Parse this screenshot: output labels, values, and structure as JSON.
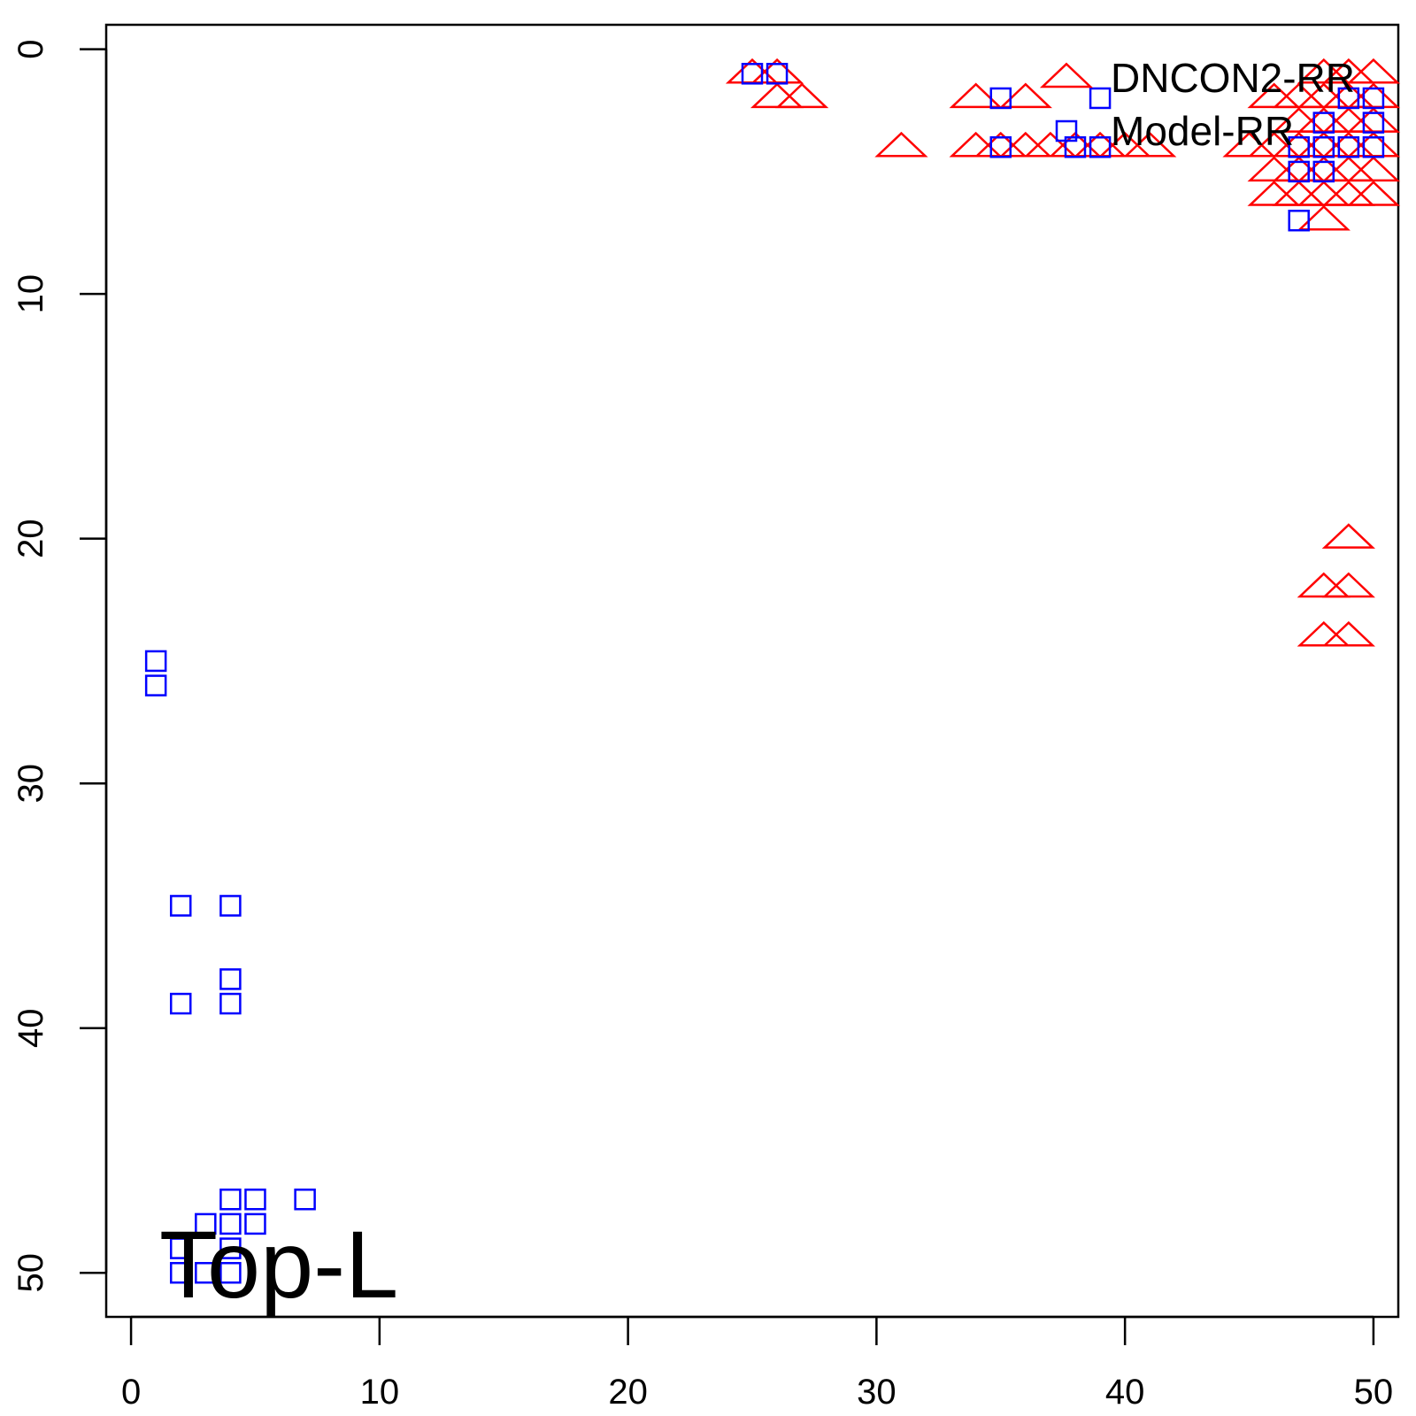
{
  "chart_data": {
    "type": "scatter",
    "title": "",
    "xlabel": "",
    "ylabel": "",
    "xlim": [
      -1,
      51
    ],
    "ylim": [
      51.8,
      -1
    ],
    "y_axis_reversed": true,
    "x_ticks": [
      0,
      10,
      20,
      30,
      40,
      50
    ],
    "x_tick_labels": [
      "0",
      "10",
      "20",
      "30",
      "40",
      "50"
    ],
    "y_ticks": [
      0,
      10,
      20,
      30,
      40,
      50
    ],
    "y_tick_labels": [
      "0",
      "10",
      "20",
      "30",
      "40",
      "50"
    ],
    "grid": false,
    "legend": {
      "placement": "top-right",
      "entries": [
        "DNCON2-RR",
        "Model-RR"
      ]
    },
    "annotation": "Top-L",
    "series": [
      {
        "name": "DNCON2-RR",
        "marker": "triangle",
        "color": "#ff0000",
        "points": [
          [
            25,
            1
          ],
          [
            26,
            1
          ],
          [
            26,
            2
          ],
          [
            27,
            2
          ],
          [
            31,
            4
          ],
          [
            34,
            2
          ],
          [
            34,
            4
          ],
          [
            35,
            4
          ],
          [
            36,
            2
          ],
          [
            36,
            4
          ],
          [
            37,
            4
          ],
          [
            38,
            4
          ],
          [
            39,
            4
          ],
          [
            40,
            4
          ],
          [
            41,
            4
          ],
          [
            45,
            4
          ],
          [
            46,
            2
          ],
          [
            46,
            4
          ],
          [
            46,
            5
          ],
          [
            46,
            6
          ],
          [
            47,
            2
          ],
          [
            47,
            3
          ],
          [
            47,
            4
          ],
          [
            47,
            5
          ],
          [
            47,
            6
          ],
          [
            48,
            1
          ],
          [
            48,
            2
          ],
          [
            48,
            3
          ],
          [
            48,
            4
          ],
          [
            48,
            5
          ],
          [
            48,
            6
          ],
          [
            48,
            7
          ],
          [
            49,
            1
          ],
          [
            49,
            2
          ],
          [
            49,
            3
          ],
          [
            49,
            4
          ],
          [
            49,
            5
          ],
          [
            49,
            6
          ],
          [
            50,
            1
          ],
          [
            50,
            2
          ],
          [
            50,
            3
          ],
          [
            50,
            4
          ],
          [
            50,
            5
          ],
          [
            50,
            6
          ],
          [
            49,
            20
          ],
          [
            48,
            22
          ],
          [
            49,
            22
          ],
          [
            48,
            24
          ],
          [
            49,
            24
          ]
        ]
      },
      {
        "name": "Model-RR",
        "marker": "square",
        "color": "#0000ff",
        "points": [
          [
            25,
            1
          ],
          [
            26,
            1
          ],
          [
            35,
            2
          ],
          [
            35,
            4
          ],
          [
            38,
            4
          ],
          [
            39,
            2
          ],
          [
            39,
            4
          ],
          [
            47,
            4
          ],
          [
            47,
            5
          ],
          [
            47,
            7
          ],
          [
            48,
            3
          ],
          [
            48,
            4
          ],
          [
            48,
            5
          ],
          [
            49,
            2
          ],
          [
            49,
            4
          ],
          [
            50,
            2
          ],
          [
            50,
            3
          ],
          [
            50,
            4
          ],
          [
            1,
            25
          ],
          [
            1,
            26
          ],
          [
            2,
            35
          ],
          [
            4,
            35
          ],
          [
            4,
            38
          ],
          [
            2,
            39
          ],
          [
            4,
            39
          ],
          [
            4,
            47
          ],
          [
            5,
            47
          ],
          [
            7,
            47
          ],
          [
            3,
            48
          ],
          [
            4,
            48
          ],
          [
            5,
            48
          ],
          [
            2,
            49
          ],
          [
            4,
            49
          ],
          [
            2,
            50
          ],
          [
            3,
            50
          ],
          [
            4,
            50
          ]
        ]
      }
    ]
  },
  "colors": {
    "axis": "#000000",
    "dncon2": "#ff0000",
    "model": "#0000ff"
  }
}
